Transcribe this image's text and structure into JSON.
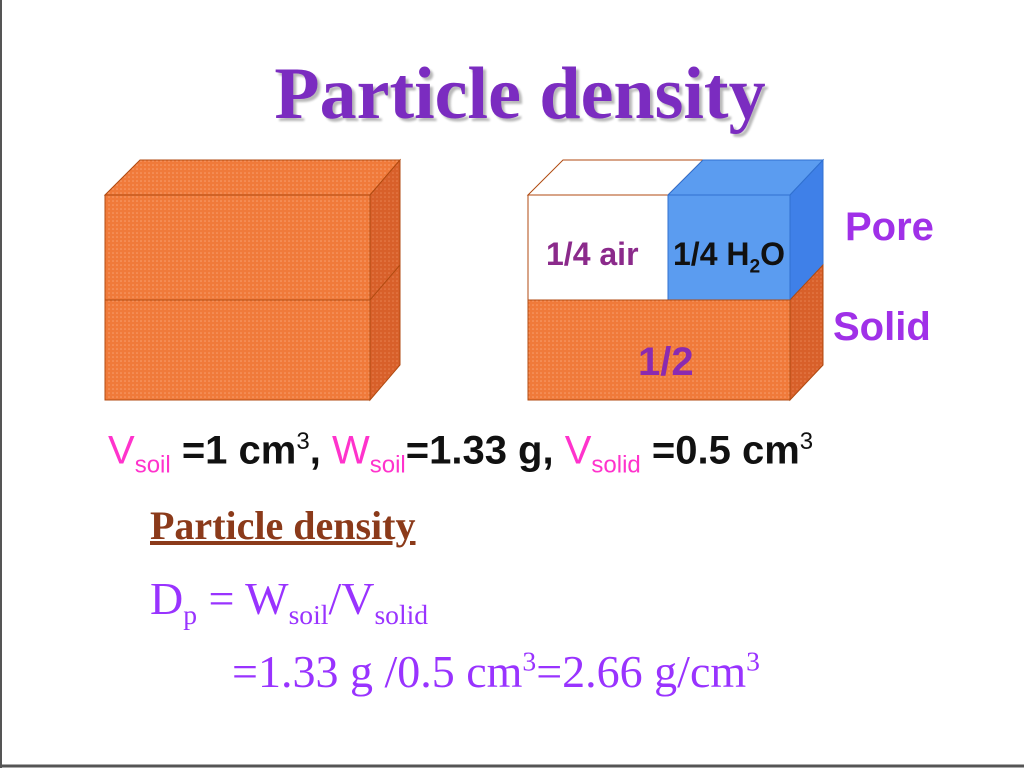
{
  "title": "Particle density",
  "diagram": {
    "air_label": "1/4 air",
    "water_label": [
      "1/4 H",
      "2",
      "O"
    ],
    "pore_label": "Pore",
    "solid_label": "Solid",
    "solid_fraction": "1/2"
  },
  "given": [
    "V",
    "soil",
    " =1 cm",
    "3",
    ", ",
    "W",
    "soil",
    "=1.33 g, ",
    "V",
    "solid",
    " =0.5 cm",
    "3"
  ],
  "formula": {
    "heading": "Particle density",
    "line1": [
      "D",
      "p",
      " = W",
      "soil",
      "/V",
      "solid"
    ],
    "line2": [
      "=1.33 g /0.5 cm",
      "3",
      "=2.66 g/cm",
      "3"
    ]
  }
}
